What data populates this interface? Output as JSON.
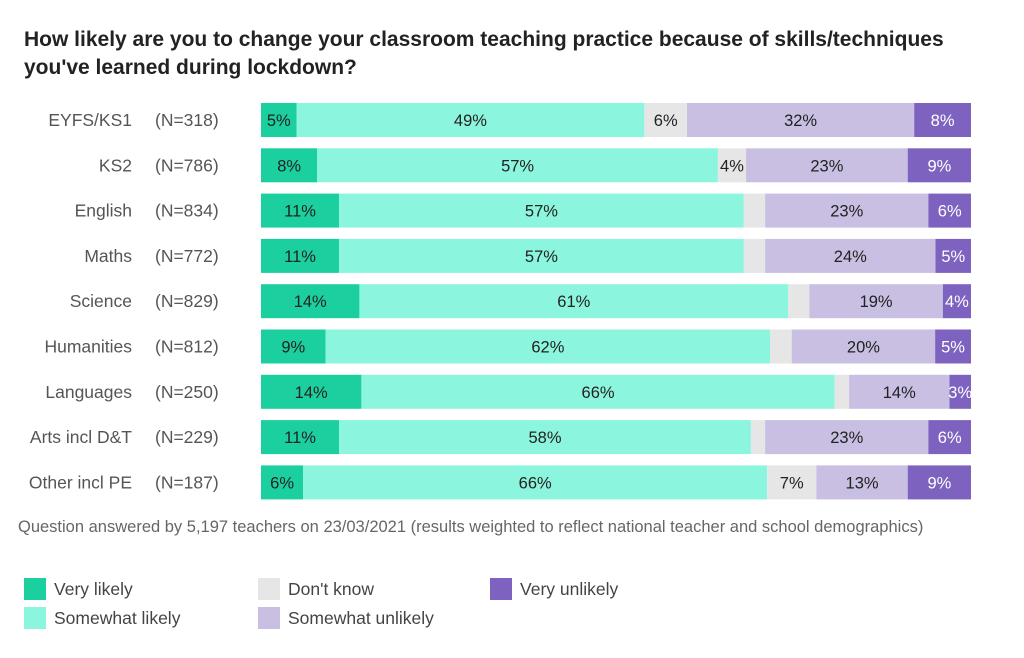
{
  "title": "How likely are you to change your classroom teaching practice because of skills/techniques you've learned during lockdown?",
  "note": "Question answered by 5,197 teachers on 23/03/2021 (results weighted to reflect national teacher and school demographics)",
  "legend": [
    {
      "label": "Very likely",
      "color": "#1ccf9f"
    },
    {
      "label": "Somewhat likely",
      "color": "#8cf5dd"
    },
    {
      "label": "Don't know",
      "color": "#e6e6e6"
    },
    {
      "label": "Somewhat unlikely",
      "color": "#c9bfe2"
    },
    {
      "label": "Very unlikely",
      "color": "#7d63bf"
    }
  ],
  "chart_data": {
    "type": "bar",
    "orientation": "horizontal",
    "stacked": true,
    "title": "How likely are you to change your classroom teaching practice because of skills/techniques you've learned during lockdown?",
    "categories": [
      "EYFS/KS1",
      "KS2",
      "English",
      "Maths",
      "Science",
      "Humanities",
      "Languages",
      "Arts incl D&T",
      "Other incl PE"
    ],
    "sample_sizes": [
      "(N=318)",
      "(N=786)",
      "(N=834)",
      "(N=772)",
      "(N=829)",
      "(N=812)",
      "(N=250)",
      "(N=229)",
      "(N=187)"
    ],
    "series": [
      {
        "name": "Very likely",
        "values": [
          5,
          8,
          11,
          11,
          14,
          9,
          14,
          11,
          6
        ],
        "labels": [
          "5%",
          "8%",
          "11%",
          "11%",
          "14%",
          "9%",
          "14%",
          "11%",
          "6%"
        ]
      },
      {
        "name": "Somewhat likely",
        "values": [
          49,
          57,
          57,
          57,
          61,
          62,
          66,
          58,
          66
        ],
        "labels": [
          "49%",
          "57%",
          "57%",
          "57%",
          "61%",
          "62%",
          "66%",
          "58%",
          "66%"
        ]
      },
      {
        "name": "Don't know",
        "values": [
          6,
          4,
          3,
          3,
          3,
          3,
          2,
          2,
          7
        ],
        "labels": [
          "6%",
          "4%",
          "",
          "",
          "",
          "",
          "",
          "",
          "7%"
        ]
      },
      {
        "name": "Somewhat unlikely",
        "values": [
          32,
          23,
          23,
          24,
          19,
          20,
          14,
          23,
          13
        ],
        "labels": [
          "32%",
          "23%",
          "23%",
          "24%",
          "19%",
          "20%",
          "14%",
          "23%",
          "13%"
        ]
      },
      {
        "name": "Very unlikely",
        "values": [
          8,
          9,
          6,
          5,
          4,
          5,
          3,
          6,
          9
        ],
        "labels": [
          "8%",
          "9%",
          "6%",
          "5%",
          "4%",
          "5%",
          "3%",
          "6%",
          "9%"
        ]
      }
    ],
    "colors": [
      "#1ccf9f",
      "#8cf5dd",
      "#e6e6e6",
      "#c9bfe2",
      "#7d63bf"
    ],
    "label_colors": [
      "#222222",
      "#222222",
      "#222222",
      "#222222",
      "#ffffff"
    ],
    "xlim": [
      0,
      100
    ],
    "legend_position": "bottom-left",
    "grid": false
  }
}
